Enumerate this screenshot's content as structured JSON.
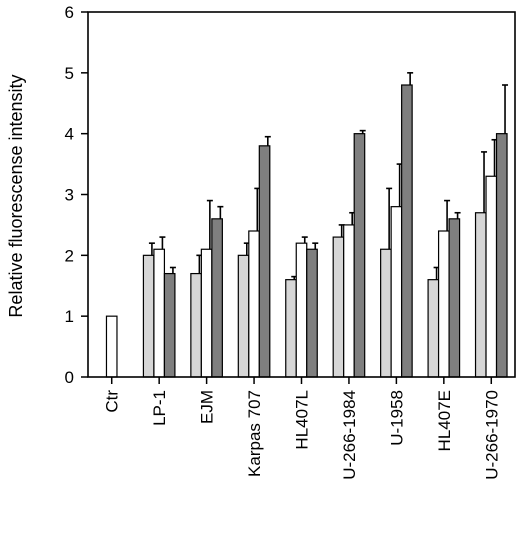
{
  "chart_data": {
    "type": "bar",
    "title": "",
    "xlabel": "",
    "ylabel": "Relative fluorescense intensity",
    "ylim": [
      0,
      6
    ],
    "yticks": [
      "0",
      "1",
      "2",
      "3",
      "4",
      "5",
      "6"
    ],
    "grid": false,
    "legend": "none",
    "categories": [
      "Ctr",
      "LP-1",
      "EJM",
      "Karpas 707",
      "HL407L",
      "U-266-1984",
      "U-1958",
      "HL407E",
      "U-266-1970"
    ],
    "series": [
      {
        "color": "#d6d6d6",
        "values": [
          null,
          2.0,
          1.7,
          2.0,
          1.6,
          2.3,
          2.1,
          1.6,
          2.7
        ],
        "errors": [
          null,
          0.2,
          0.3,
          0.2,
          0.05,
          0.2,
          1.0,
          0.2,
          1.0
        ]
      },
      {
        "color": "#ffffff",
        "values": [
          1.0,
          2.1,
          2.1,
          2.4,
          2.2,
          2.5,
          2.8,
          2.4,
          3.3
        ],
        "errors": [
          null,
          0.2,
          0.8,
          0.7,
          0.1,
          0.2,
          0.7,
          0.5,
          0.6
        ]
      },
      {
        "color": "#7f7f7f",
        "values": [
          null,
          1.7,
          2.6,
          3.8,
          2.1,
          4.0,
          4.8,
          2.6,
          4.0
        ],
        "errors": [
          null,
          0.1,
          0.2,
          0.15,
          0.1,
          0.05,
          0.2,
          0.1,
          0.8
        ]
      }
    ]
  }
}
